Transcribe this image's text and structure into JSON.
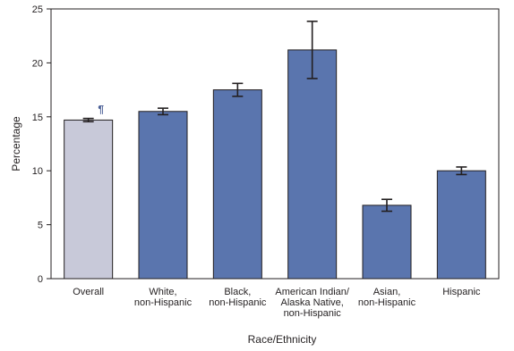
{
  "chart_data": {
    "type": "bar",
    "xlabel": "Race/Ethnicity",
    "ylabel": "Percentage",
    "categories": [
      "Overall",
      "White,\nnon-Hispanic",
      "Black,\nnon-Hispanic",
      "American Indian/\nAlaska Native,\nnon-Hispanic",
      "Asian,\nnon-Hispanic",
      "Hispanic"
    ],
    "values": [
      14.7,
      15.5,
      17.5,
      21.2,
      6.8,
      10.0
    ],
    "errors": [
      0.15,
      0.3,
      0.6,
      2.65,
      0.55,
      0.35
    ],
    "colors": [
      "#c8c9d9",
      "#5a75ae",
      "#5a75ae",
      "#5a75ae",
      "#5a75ae",
      "#5a75ae"
    ],
    "ylim": [
      0,
      25
    ],
    "yticks": [
      0,
      5,
      10,
      15,
      20,
      25
    ],
    "annotation": "¶"
  }
}
